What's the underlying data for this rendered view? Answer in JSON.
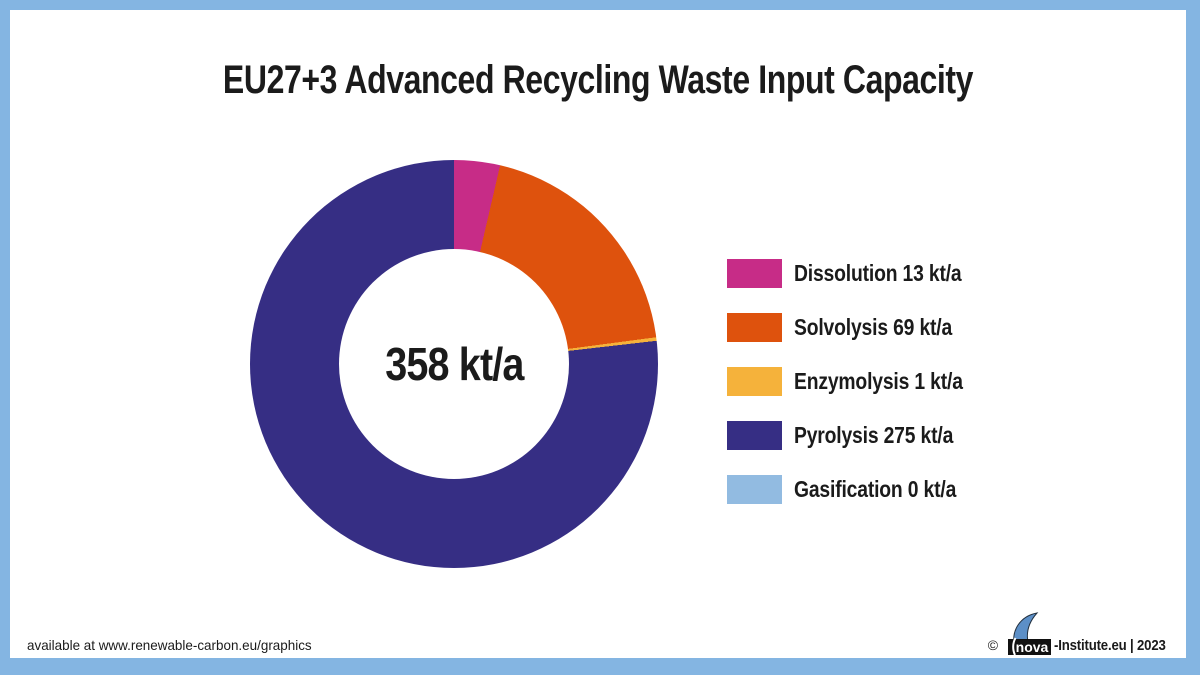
{
  "frame": {
    "border_color": "#84B5E2",
    "background_color": "#FFFFFF"
  },
  "chart_data": {
    "type": "pie",
    "subtype": "donut",
    "title": "EU27+3 Advanced Recycling Waste Input Capacity",
    "center_label": "358 kt/a",
    "total": 358,
    "unit": "kt/a",
    "start_angle_deg": 0,
    "direction": "clockwise",
    "legend_position": "right",
    "segments": [
      {
        "name": "Dissolution",
        "value": 13,
        "color": "#C72C87",
        "label": "Dissolution 13 kt/a"
      },
      {
        "name": "Solvolysis",
        "value": 69,
        "color": "#DE520D",
        "label": "Solvolysis 69 kt/a"
      },
      {
        "name": "Enzymolysis",
        "value": 1,
        "color": "#F5B23B",
        "label": "Enzymolysis 1 kt/a"
      },
      {
        "name": "Pyrolysis",
        "value": 275,
        "color": "#362E84",
        "label": "Pyrolysis 275 kt/a"
      },
      {
        "name": "Gasification",
        "value": 0,
        "color": "#92BBE1",
        "label": "Gasification 0 kt/a"
      }
    ]
  },
  "footer": {
    "availability": "available at www.renewable-carbon.eu/graphics",
    "copyright_symbol": "©",
    "logo_text": "nova",
    "copyright_text": "-Institute.eu | 2023"
  }
}
